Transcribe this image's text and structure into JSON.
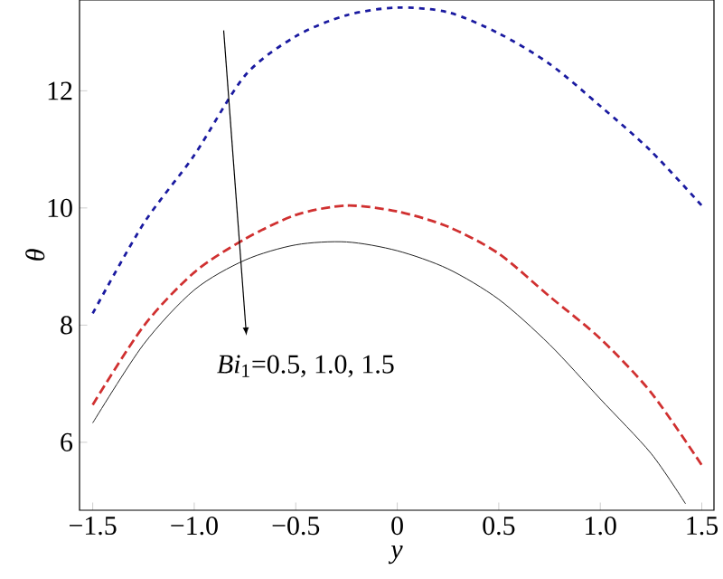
{
  "chart_data": {
    "type": "line",
    "xlabel": "y",
    "ylabel": "θ",
    "x": [
      -1.5,
      -1.25,
      -1.0,
      -0.75,
      -0.5,
      -0.25,
      0,
      0.25,
      0.5,
      0.75,
      1.0,
      1.25,
      1.5
    ],
    "series": [
      {
        "color": "#1a1aa0",
        "line_style": "dotted",
        "values": [
          8.2,
          9.73,
          10.9,
          12.26,
          12.93,
          13.29,
          13.42,
          13.34,
          12.98,
          12.46,
          11.74,
          10.97,
          10.04
        ]
      },
      {
        "color": "#d03030",
        "line_style": "dashed",
        "values": [
          6.64,
          7.98,
          8.9,
          9.47,
          9.88,
          10.04,
          9.94,
          9.68,
          9.22,
          8.49,
          7.77,
          6.85,
          5.61
        ]
      },
      {
        "color": "#222222",
        "line_style": "solid",
        "x": [
          -1.5,
          -1.25,
          -1.0,
          -0.75,
          -0.5,
          -0.25,
          0,
          0.25,
          0.5,
          0.75,
          1.0,
          1.25,
          1.42
        ],
        "values": [
          6.33,
          7.67,
          8.6,
          9.11,
          9.37,
          9.42,
          9.27,
          8.96,
          8.44,
          7.67,
          6.74,
          5.81,
          4.95
        ]
      }
    ],
    "xlim": [
      -1.565,
      1.56
    ],
    "ylim": [
      4.84,
      13.55
    ],
    "xticks": [
      {
        "value": -1.5,
        "label": "−1.5"
      },
      {
        "value": -1.0,
        "label": "−1.0"
      },
      {
        "value": -0.5,
        "label": "−0.5"
      },
      0,
      0.5,
      {
        "value": 1.0,
        "label": "1.0"
      },
      1.5
    ],
    "yticks": [
      6,
      8,
      10,
      12
    ],
    "annotations": [
      "*Bi*$_{1}$=0.5, 1.0, 1.5"
    ]
  }
}
